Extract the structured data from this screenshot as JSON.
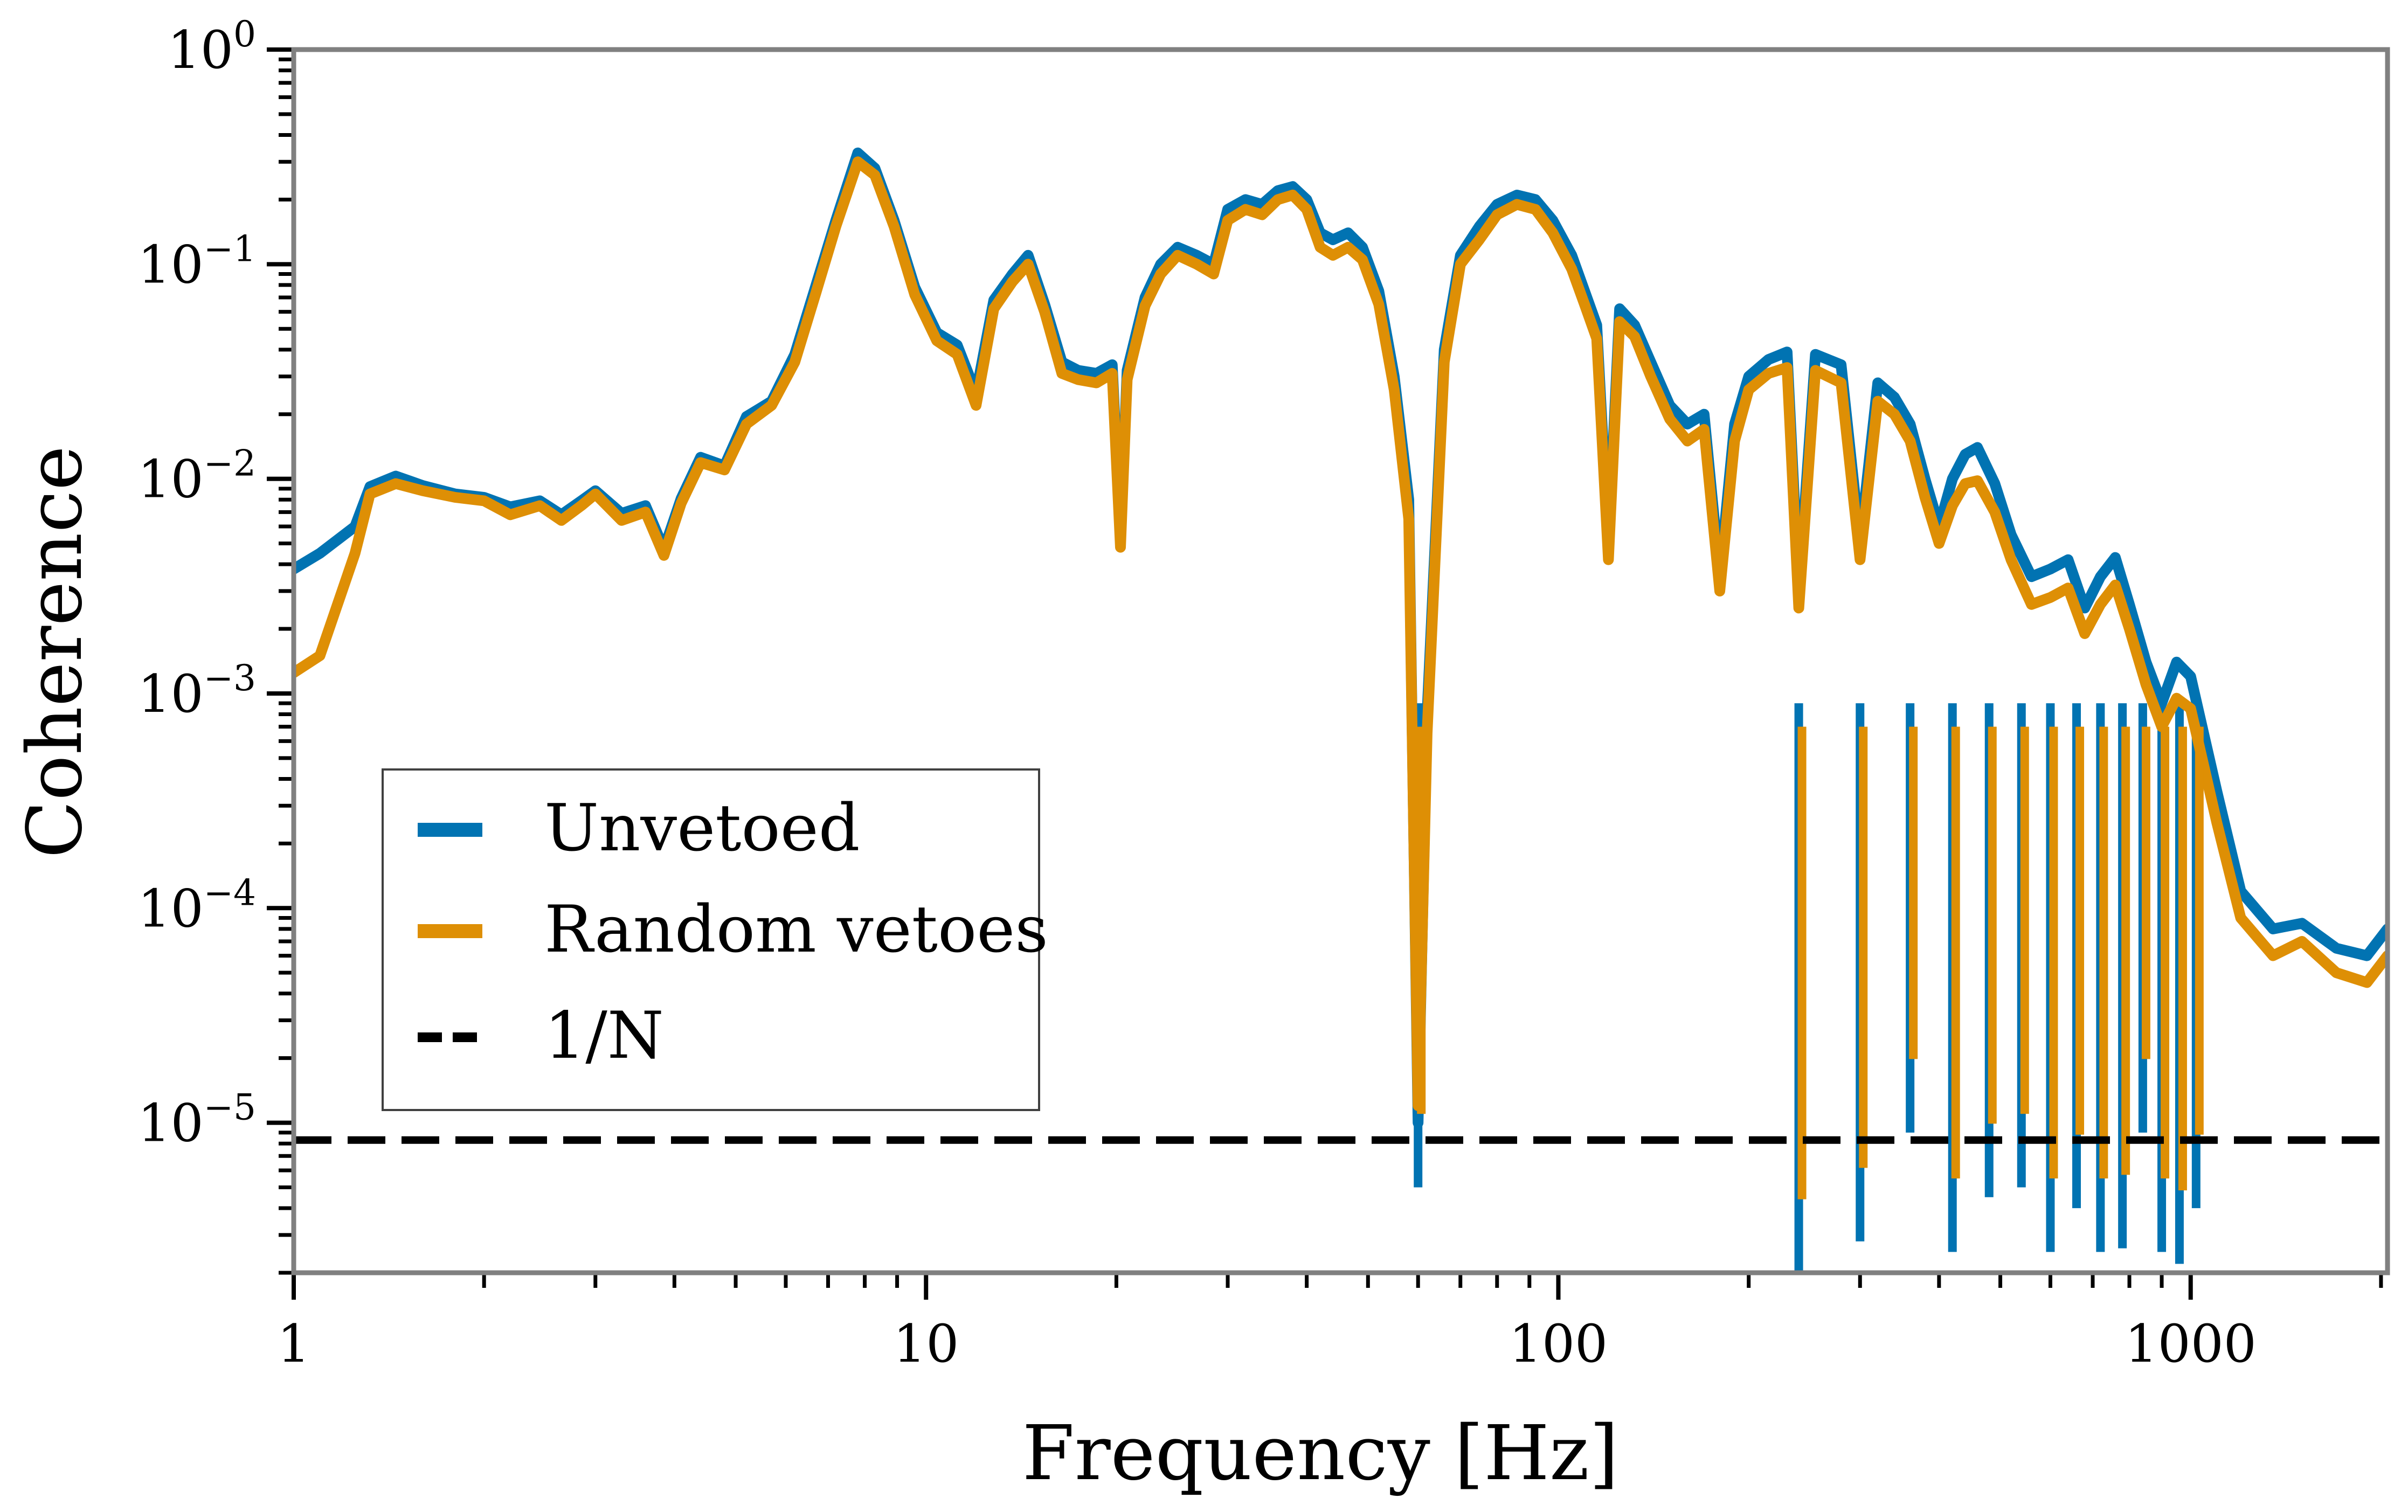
{
  "chart_data": {
    "type": "line",
    "xlabel": "Frequency [Hz]",
    "ylabel": "Coherence",
    "xscale": "log",
    "yscale": "log",
    "xlim": [
      1,
      2048
    ],
    "ylim": [
      2e-06,
      1
    ],
    "x_ticks": [
      {
        "value": 1,
        "label": "1"
      },
      {
        "value": 10,
        "label": "10"
      },
      {
        "value": 100,
        "label": "100"
      },
      {
        "value": 1000,
        "label": "1000"
      }
    ],
    "y_ticks": [
      {
        "value": 1,
        "mant": "10",
        "exp": "0"
      },
      {
        "value": 0.1,
        "mant": "10",
        "exp": "−1"
      },
      {
        "value": 0.01,
        "mant": "10",
        "exp": "−2"
      },
      {
        "value": 0.001,
        "mant": "10",
        "exp": "−3"
      },
      {
        "value": 0.0001,
        "mant": "10",
        "exp": "−4"
      },
      {
        "value": 1e-05,
        "mant": "10",
        "exp": "−5"
      }
    ],
    "grid": false,
    "legend_position": "lower-left",
    "series": [
      {
        "name": "Unvetoed",
        "color": "#0173b2",
        "style": "solid",
        "points": [
          [
            1,
            0.0038
          ],
          [
            1.1,
            0.0045
          ],
          [
            1.25,
            0.006
          ],
          [
            1.32,
            0.0092
          ],
          [
            1.45,
            0.0103
          ],
          [
            1.6,
            0.0093
          ],
          [
            1.8,
            0.0085
          ],
          [
            2.0,
            0.0082
          ],
          [
            2.2,
            0.0074
          ],
          [
            2.45,
            0.0079
          ],
          [
            2.65,
            0.0068
          ],
          [
            2.85,
            0.0079
          ],
          [
            3.0,
            0.0088
          ],
          [
            3.3,
            0.0069
          ],
          [
            3.6,
            0.0075
          ],
          [
            3.85,
            0.0047
          ],
          [
            4.1,
            0.0081
          ],
          [
            4.4,
            0.0126
          ],
          [
            4.8,
            0.0115
          ],
          [
            5.2,
            0.0195
          ],
          [
            5.7,
            0.023
          ],
          [
            6.2,
            0.038
          ],
          [
            6.7,
            0.08
          ],
          [
            7.2,
            0.16
          ],
          [
            7.8,
            0.33
          ],
          [
            8.3,
            0.28
          ],
          [
            8.9,
            0.16
          ],
          [
            9.6,
            0.078
          ],
          [
            10.4,
            0.048
          ],
          [
            11.2,
            0.042
          ],
          [
            12.0,
            0.025
          ],
          [
            12.8,
            0.068
          ],
          [
            13.7,
            0.09
          ],
          [
            14.5,
            0.11
          ],
          [
            15.4,
            0.065
          ],
          [
            16.4,
            0.035
          ],
          [
            17.4,
            0.032
          ],
          [
            18.6,
            0.031
          ],
          [
            19.7,
            0.034
          ],
          [
            20.3,
            0.0052
          ],
          [
            20.8,
            0.032
          ],
          [
            22.2,
            0.07
          ],
          [
            23.5,
            0.1
          ],
          [
            25.0,
            0.12
          ],
          [
            26.8,
            0.11
          ],
          [
            28.5,
            0.1
          ],
          [
            30.0,
            0.18
          ],
          [
            32.0,
            0.2
          ],
          [
            34.0,
            0.19
          ],
          [
            36.0,
            0.22
          ],
          [
            38.0,
            0.23
          ],
          [
            40.0,
            0.2
          ],
          [
            42.0,
            0.14
          ],
          [
            44.0,
            0.13
          ],
          [
            46.5,
            0.14
          ],
          [
            49.0,
            0.12
          ],
          [
            52.0,
            0.075
          ],
          [
            55.0,
            0.03
          ],
          [
            58.0,
            0.008
          ],
          [
            60.0,
            1e-05
          ],
          [
            62.0,
            0.0008
          ],
          [
            66.0,
            0.04
          ],
          [
            70.0,
            0.11
          ],
          [
            75.0,
            0.15
          ],
          [
            80.0,
            0.19
          ],
          [
            86.0,
            0.21
          ],
          [
            92.0,
            0.2
          ],
          [
            98.0,
            0.16
          ],
          [
            105.0,
            0.11
          ],
          [
            110.0,
            0.075
          ],
          [
            115.0,
            0.052
          ],
          [
            120.0,
            0.005
          ],
          [
            125.0,
            0.062
          ],
          [
            132.0,
            0.052
          ],
          [
            140.0,
            0.035
          ],
          [
            150.0,
            0.022
          ],
          [
            160.0,
            0.018
          ],
          [
            170.0,
            0.02
          ],
          [
            180.0,
            0.0035
          ],
          [
            190.0,
            0.018
          ],
          [
            200.0,
            0.03
          ],
          [
            215.0,
            0.036
          ],
          [
            230.0,
            0.039
          ],
          [
            240.0,
            0.003
          ],
          [
            255.0,
            0.038
          ],
          [
            280.0,
            0.034
          ],
          [
            300.0,
            0.005
          ],
          [
            320.0,
            0.028
          ],
          [
            340.0,
            0.024
          ],
          [
            360.0,
            0.018
          ],
          [
            380.0,
            0.01
          ],
          [
            400.0,
            0.006
          ],
          [
            420.0,
            0.01
          ],
          [
            440.0,
            0.013
          ],
          [
            460.0,
            0.014
          ],
          [
            490.0,
            0.0095
          ],
          [
            520.0,
            0.0055
          ],
          [
            560.0,
            0.0035
          ],
          [
            600.0,
            0.0038
          ],
          [
            640.0,
            0.0042
          ],
          [
            680.0,
            0.0025
          ],
          [
            720.0,
            0.0035
          ],
          [
            760.0,
            0.0043
          ],
          [
            800.0,
            0.0026
          ],
          [
            850.0,
            0.0014
          ],
          [
            900.0,
            0.0009
          ],
          [
            950.0,
            0.0014
          ],
          [
            1000.0,
            0.0012
          ],
          [
            1100.0,
            0.00035
          ],
          [
            1200.0,
            0.00012
          ],
          [
            1350.0,
            8e-05
          ],
          [
            1500.0,
            8.5e-05
          ],
          [
            1700.0,
            6.5e-05
          ],
          [
            1900.0,
            6e-05
          ],
          [
            2048.0,
            8e-05
          ]
        ]
      },
      {
        "name": "Random vetoes",
        "color": "#de8f05",
        "style": "solid",
        "points": [
          [
            1,
            0.00125
          ],
          [
            1.1,
            0.0015
          ],
          [
            1.25,
            0.0045
          ],
          [
            1.32,
            0.0085
          ],
          [
            1.45,
            0.0095
          ],
          [
            1.6,
            0.0088
          ],
          [
            1.8,
            0.0082
          ],
          [
            2.0,
            0.0079
          ],
          [
            2.2,
            0.0068
          ],
          [
            2.45,
            0.0075
          ],
          [
            2.65,
            0.0064
          ],
          [
            2.85,
            0.0075
          ],
          [
            3.0,
            0.0085
          ],
          [
            3.3,
            0.0064
          ],
          [
            3.6,
            0.007
          ],
          [
            3.85,
            0.0044
          ],
          [
            4.1,
            0.0077
          ],
          [
            4.4,
            0.0119
          ],
          [
            4.8,
            0.011
          ],
          [
            5.2,
            0.018
          ],
          [
            5.7,
            0.022
          ],
          [
            6.2,
            0.035
          ],
          [
            6.7,
            0.074
          ],
          [
            7.2,
            0.15
          ],
          [
            7.8,
            0.3
          ],
          [
            8.3,
            0.26
          ],
          [
            8.9,
            0.15
          ],
          [
            9.6,
            0.072
          ],
          [
            10.4,
            0.044
          ],
          [
            11.2,
            0.038
          ],
          [
            12.0,
            0.022
          ],
          [
            12.8,
            0.062
          ],
          [
            13.7,
            0.083
          ],
          [
            14.5,
            0.1
          ],
          [
            15.4,
            0.06
          ],
          [
            16.4,
            0.031
          ],
          [
            17.4,
            0.029
          ],
          [
            18.6,
            0.028
          ],
          [
            19.7,
            0.031
          ],
          [
            20.3,
            0.0048
          ],
          [
            20.8,
            0.029
          ],
          [
            22.2,
            0.064
          ],
          [
            23.5,
            0.09
          ],
          [
            25.0,
            0.11
          ],
          [
            26.8,
            0.1
          ],
          [
            28.5,
            0.09
          ],
          [
            30.0,
            0.16
          ],
          [
            32.0,
            0.18
          ],
          [
            34.0,
            0.17
          ],
          [
            36.0,
            0.2
          ],
          [
            38.0,
            0.21
          ],
          [
            40.0,
            0.18
          ],
          [
            42.0,
            0.12
          ],
          [
            44.0,
            0.11
          ],
          [
            46.5,
            0.12
          ],
          [
            49.0,
            0.105
          ],
          [
            52.0,
            0.065
          ],
          [
            55.0,
            0.026
          ],
          [
            58.0,
            0.0065
          ],
          [
            60.0,
            1.2e-05
          ],
          [
            62.0,
            0.00065
          ],
          [
            66.0,
            0.035
          ],
          [
            70.0,
            0.1
          ],
          [
            75.0,
            0.13
          ],
          [
            80.0,
            0.17
          ],
          [
            86.0,
            0.19
          ],
          [
            92.0,
            0.18
          ],
          [
            98.0,
            0.14
          ],
          [
            105.0,
            0.095
          ],
          [
            110.0,
            0.065
          ],
          [
            115.0,
            0.045
          ],
          [
            120.0,
            0.0042
          ],
          [
            125.0,
            0.054
          ],
          [
            132.0,
            0.046
          ],
          [
            140.0,
            0.03
          ],
          [
            150.0,
            0.019
          ],
          [
            160.0,
            0.015
          ],
          [
            170.0,
            0.017
          ],
          [
            180.0,
            0.003
          ],
          [
            190.0,
            0.015
          ],
          [
            200.0,
            0.026
          ],
          [
            215.0,
            0.031
          ],
          [
            230.0,
            0.033
          ],
          [
            240.0,
            0.0025
          ],
          [
            255.0,
            0.032
          ],
          [
            280.0,
            0.028
          ],
          [
            300.0,
            0.0042
          ],
          [
            320.0,
            0.023
          ],
          [
            340.0,
            0.02
          ],
          [
            360.0,
            0.015
          ],
          [
            380.0,
            0.0082
          ],
          [
            400.0,
            0.005
          ],
          [
            420.0,
            0.0075
          ],
          [
            440.0,
            0.0095
          ],
          [
            460.0,
            0.0098
          ],
          [
            490.0,
            0.007
          ],
          [
            520.0,
            0.0042
          ],
          [
            560.0,
            0.0026
          ],
          [
            600.0,
            0.0028
          ],
          [
            640.0,
            0.0031
          ],
          [
            680.0,
            0.0019
          ],
          [
            720.0,
            0.0026
          ],
          [
            760.0,
            0.0032
          ],
          [
            800.0,
            0.002
          ],
          [
            850.0,
            0.0011
          ],
          [
            900.0,
            0.0007
          ],
          [
            950.0,
            0.00095
          ],
          [
            1000.0,
            0.00085
          ],
          [
            1100.0,
            0.00025
          ],
          [
            1200.0,
            9e-05
          ],
          [
            1350.0,
            6e-05
          ],
          [
            1500.0,
            7e-05
          ],
          [
            1700.0,
            5e-05
          ],
          [
            1900.0,
            4.5e-05
          ],
          [
            2048.0,
            6e-05
          ]
        ]
      },
      {
        "name": "1/N",
        "color": "#000000",
        "style": "dashed",
        "points": [
          [
            1,
            8.3e-06
          ],
          [
            2048,
            8.3e-06
          ]
        ]
      }
    ],
    "dips": [
      {
        "freq": 60,
        "value": 5e-06,
        "series": "Unvetoed"
      },
      {
        "freq": 240,
        "value": 2e-06,
        "series": "Unvetoed"
      },
      {
        "freq": 300,
        "value": 2.8e-06,
        "series": "Unvetoed"
      },
      {
        "freq": 360,
        "value": 9e-06,
        "series": "Unvetoed"
      },
      {
        "freq": 420,
        "value": 2.5e-06,
        "series": "Unvetoed"
      },
      {
        "freq": 480,
        "value": 4.5e-06,
        "series": "Unvetoed"
      },
      {
        "freq": 540,
        "value": 5e-06,
        "series": "Unvetoed"
      },
      {
        "freq": 600,
        "value": 2.5e-06,
        "series": "Unvetoed"
      },
      {
        "freq": 660,
        "value": 4e-06,
        "series": "Unvetoed"
      },
      {
        "freq": 720,
        "value": 2.5e-06,
        "series": "Unvetoed"
      },
      {
        "freq": 780,
        "value": 2.6e-06,
        "series": "Unvetoed"
      },
      {
        "freq": 840,
        "value": 9e-06,
        "series": "Unvetoed"
      },
      {
        "freq": 900,
        "value": 2.5e-06,
        "series": "Unvetoed"
      },
      {
        "freq": 960,
        "value": 2.2e-06,
        "series": "Unvetoed"
      },
      {
        "freq": 1020,
        "value": 4e-06,
        "series": "Unvetoed"
      }
    ],
    "legend": [
      {
        "label": "Unvetoed",
        "color": "#0173b2",
        "style": "solid"
      },
      {
        "label": "Random vetoes",
        "color": "#de8f05",
        "style": "solid"
      },
      {
        "label": "1/N",
        "color": "#000000",
        "style": "dashed"
      }
    ]
  }
}
